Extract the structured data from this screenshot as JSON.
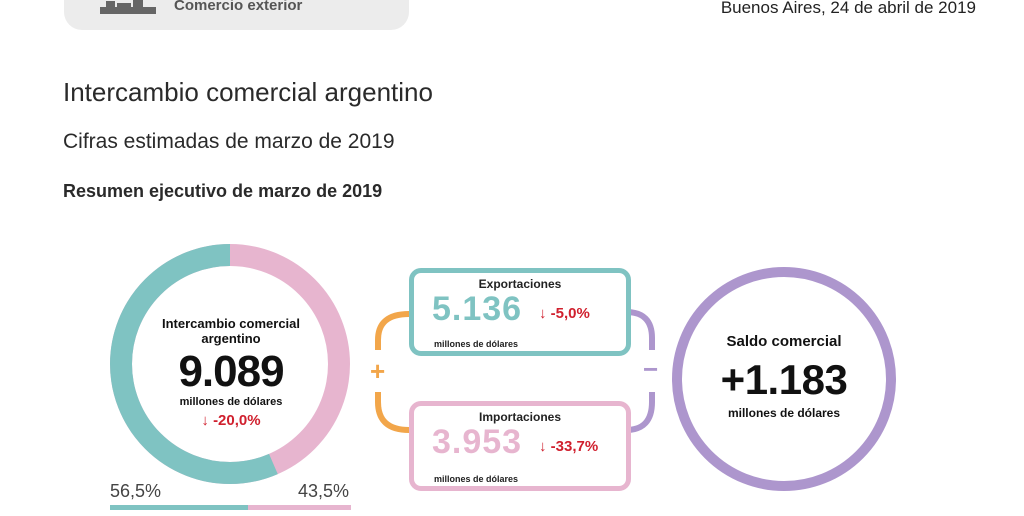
{
  "header": {
    "section": "Comercio exterior",
    "date": "Buenos Aires, 24 de abril de 2019",
    "ship_icon": "ship-icon"
  },
  "title": "Intercambio comercial argentino",
  "subtitle": "Cifras estimadas de marzo de 2019",
  "summary_heading": "Resumen ejecutivo de marzo de 2019",
  "intercambio": {
    "label": "Intercambio comercial argentino",
    "value": "9.089",
    "unit": "millones de dólares",
    "change": "-20,0%",
    "share_exports": "56,5%",
    "share_imports": "43,5%",
    "share_exports_fraction": 0.565
  },
  "exportaciones": {
    "label": "Exportaciones",
    "value": "5.136",
    "unit": "millones de dólares",
    "change": "-5,0%"
  },
  "importaciones": {
    "label": "Importaciones",
    "value": "3.953",
    "unit": "millones de dólares",
    "change": "-33,7%"
  },
  "operators": {
    "plus": "+",
    "minus": "−"
  },
  "saldo": {
    "label": "Saldo comercial",
    "value": "+1.183",
    "unit": "millones de dólares"
  },
  "colors": {
    "exports": "#7fc3c2",
    "imports": "#e7b5cf",
    "saldo": "#ad96cd",
    "plus": "#f2a64a",
    "negative": "#d0202e"
  },
  "arrow_down": "↓"
}
